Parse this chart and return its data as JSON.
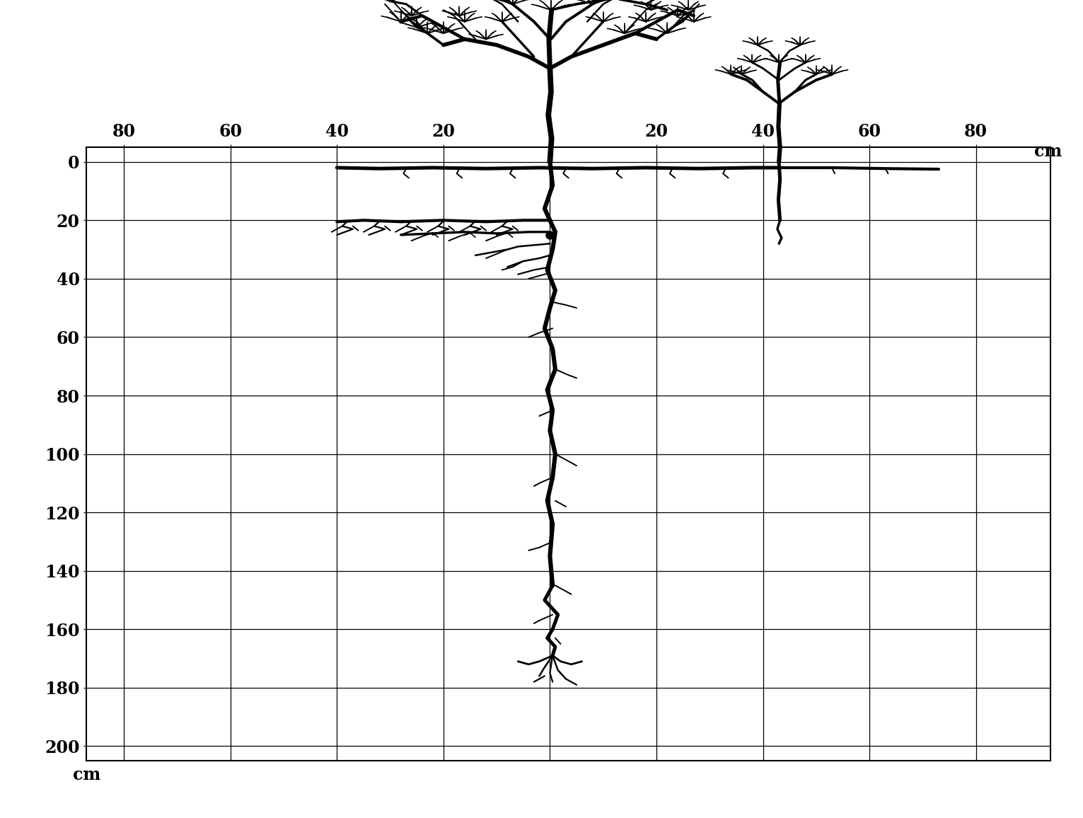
{
  "bg_color": "#ffffff",
  "grid_color": "#000000",
  "x_ticks": [
    -80,
    -60,
    -40,
    -20,
    0,
    20,
    40,
    60,
    80
  ],
  "x_tick_labels": [
    "80",
    "60",
    "40",
    "20",
    "",
    "20",
    "40",
    "60",
    "80"
  ],
  "y_ticks": [
    0,
    20,
    40,
    60,
    80,
    100,
    120,
    140,
    160,
    180,
    200
  ],
  "xlim": [
    -87,
    94
  ],
  "ylim": [
    205,
    -5
  ],
  "xlabel": "cm",
  "ylabel": "cm",
  "line_color": "#000000",
  "line_width": 2.0,
  "tick_fontsize": 17
}
